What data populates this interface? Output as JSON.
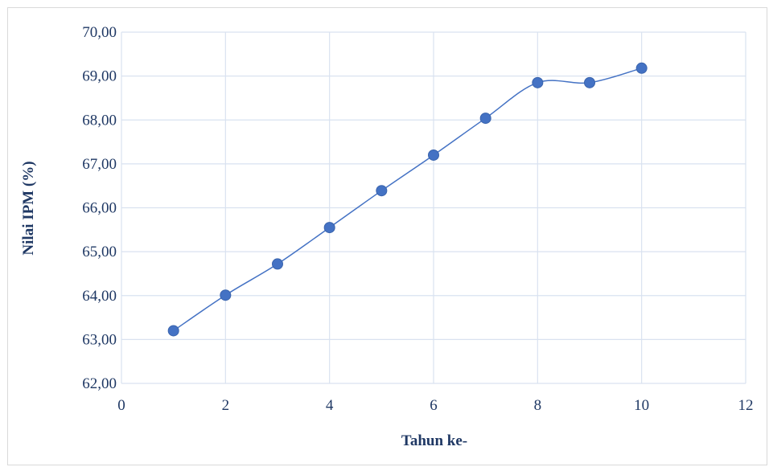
{
  "chart_data": {
    "type": "scatter",
    "title": "",
    "xlabel": "Tahun ke-",
    "ylabel": "Nilai IPM (%)",
    "xlim": [
      0,
      12
    ],
    "ylim": [
      62,
      70
    ],
    "x_ticks": [
      "0",
      "2",
      "4",
      "6",
      "8",
      "10",
      "12"
    ],
    "y_ticks": [
      "62,00",
      "63,00",
      "64,00",
      "65,00",
      "66,00",
      "67,00",
      "68,00",
      "69,00",
      "70,00"
    ],
    "grid": true,
    "smooth_line": true,
    "series": [
      {
        "x": [
          1,
          2,
          3,
          4,
          5,
          6,
          7,
          8,
          9,
          10
        ],
        "y": [
          63.2,
          64.01,
          64.72,
          65.55,
          66.39,
          67.2,
          68.04,
          68.85,
          68.85,
          69.18
        ]
      }
    ],
    "colors": {
      "series": "#4472c4",
      "grid": "#d9e2f0",
      "text": "#1f3864"
    }
  }
}
